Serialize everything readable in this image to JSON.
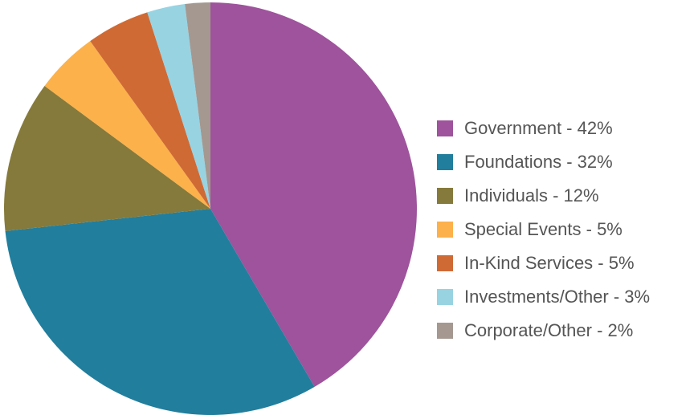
{
  "chart_data": {
    "type": "pie",
    "start": "12 o'clock",
    "direction": "clockwise",
    "legend_position": "right",
    "slices": [
      {
        "label": "Government - 42%",
        "value": 42,
        "color": "#9e539c"
      },
      {
        "label": "Foundations - 32%",
        "value": 32,
        "color": "#217e9d"
      },
      {
        "label": "Individuals - 12%",
        "value": 12,
        "color": "#857a3b"
      },
      {
        "label": "Special Events - 5%",
        "value": 5,
        "color": "#fcb14a"
      },
      {
        "label": "In-Kind Services - 5%",
        "value": 5,
        "color": "#cf6a35"
      },
      {
        "label": "Investments/Other - 3%",
        "value": 3,
        "color": "#98d3e2"
      },
      {
        "label": "Corporate/Other - 2%",
        "value": 2,
        "color": "#a49891"
      }
    ]
  }
}
